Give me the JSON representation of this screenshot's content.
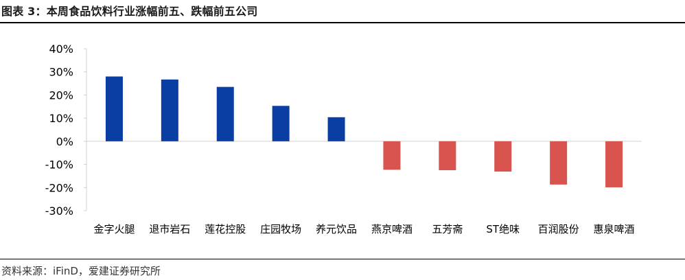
{
  "figure": {
    "title": "图表 3：本周食品饮料行业涨幅前五、跌幅前五公司",
    "source": "资料来源：iFinD，爱建证券研究所"
  },
  "colors": {
    "gain": "#0a3ea3",
    "loss": "#d9534f",
    "axis": "#d0d0d0"
  },
  "chart_data": {
    "type": "bar",
    "title": "",
    "xlabel": "",
    "ylabel": "",
    "ylim": [
      -0.3,
      0.4
    ],
    "yticks": [
      "40%",
      "30%",
      "20%",
      "10%",
      "0%",
      "-10%",
      "-20%",
      "-30%"
    ],
    "grid": false,
    "legend": "none",
    "categories": [
      "金字火腿",
      "退市岩石",
      "莲花控股",
      "庄园牧场",
      "养元饮品",
      "燕京啤酒",
      "五芳斋",
      "ST绝味",
      "百润股份",
      "惠泉啤酒"
    ],
    "values": [
      0.28,
      0.267,
      0.235,
      0.153,
      0.104,
      -0.123,
      -0.125,
      -0.131,
      -0.187,
      -0.199
    ]
  }
}
